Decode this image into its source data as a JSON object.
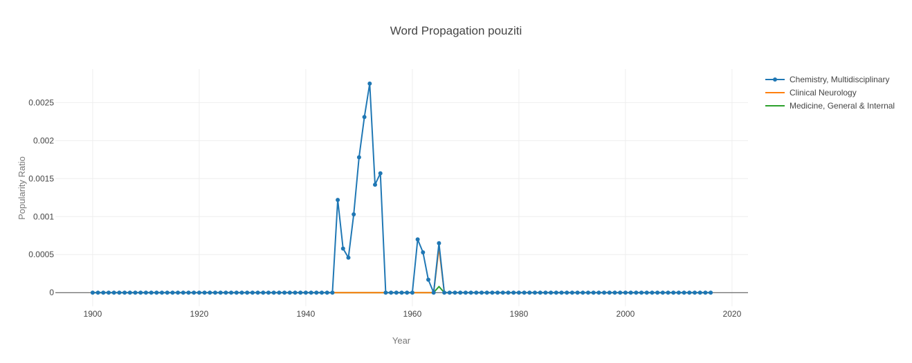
{
  "chart_data": {
    "type": "line",
    "title": "Word Propagation pouziti",
    "xlabel": "Year",
    "ylabel": "Popularity Ratio",
    "xlim": [
      1893,
      2023
    ],
    "ylim": [
      -0.00018,
      0.00294
    ],
    "x_ticks": [
      1900,
      1920,
      1940,
      1960,
      1980,
      2000,
      2020
    ],
    "x_tick_labels": [
      "1900",
      "1920",
      "1940",
      "1960",
      "1980",
      "2000",
      "2020"
    ],
    "y_ticks": [
      0,
      0.0005,
      0.001,
      0.0015,
      0.002,
      0.0025
    ],
    "y_tick_labels": [
      "0",
      "0.0005",
      "0.001",
      "0.0015",
      "0.002",
      "0.0025"
    ],
    "grid": true,
    "legend_position": "top-right",
    "x_start": 1900,
    "x_end": 2016,
    "series": [
      {
        "name": "Chemistry, Multidisciplinary",
        "color": "#1f77b4",
        "markers": true,
        "nonzero": {
          "1946": 0.00122,
          "1947": 0.00058,
          "1948": 0.00046,
          "1949": 0.00103,
          "1950": 0.00178,
          "1951": 0.00231,
          "1952": 0.00275,
          "1953": 0.00142,
          "1954": 0.00157,
          "1961": 0.0007,
          "1962": 0.00053,
          "1963": 0.00017,
          "1965": 0.00065
        }
      },
      {
        "name": "Clinical Neurology",
        "color": "#ff7f0e",
        "markers": false,
        "nonzero": {
          "1965": 0.00059
        }
      },
      {
        "name": "Medicine, General & Internal",
        "color": "#2ca02c",
        "markers": false,
        "nonzero": {
          "1965": 8e-05
        }
      }
    ]
  }
}
